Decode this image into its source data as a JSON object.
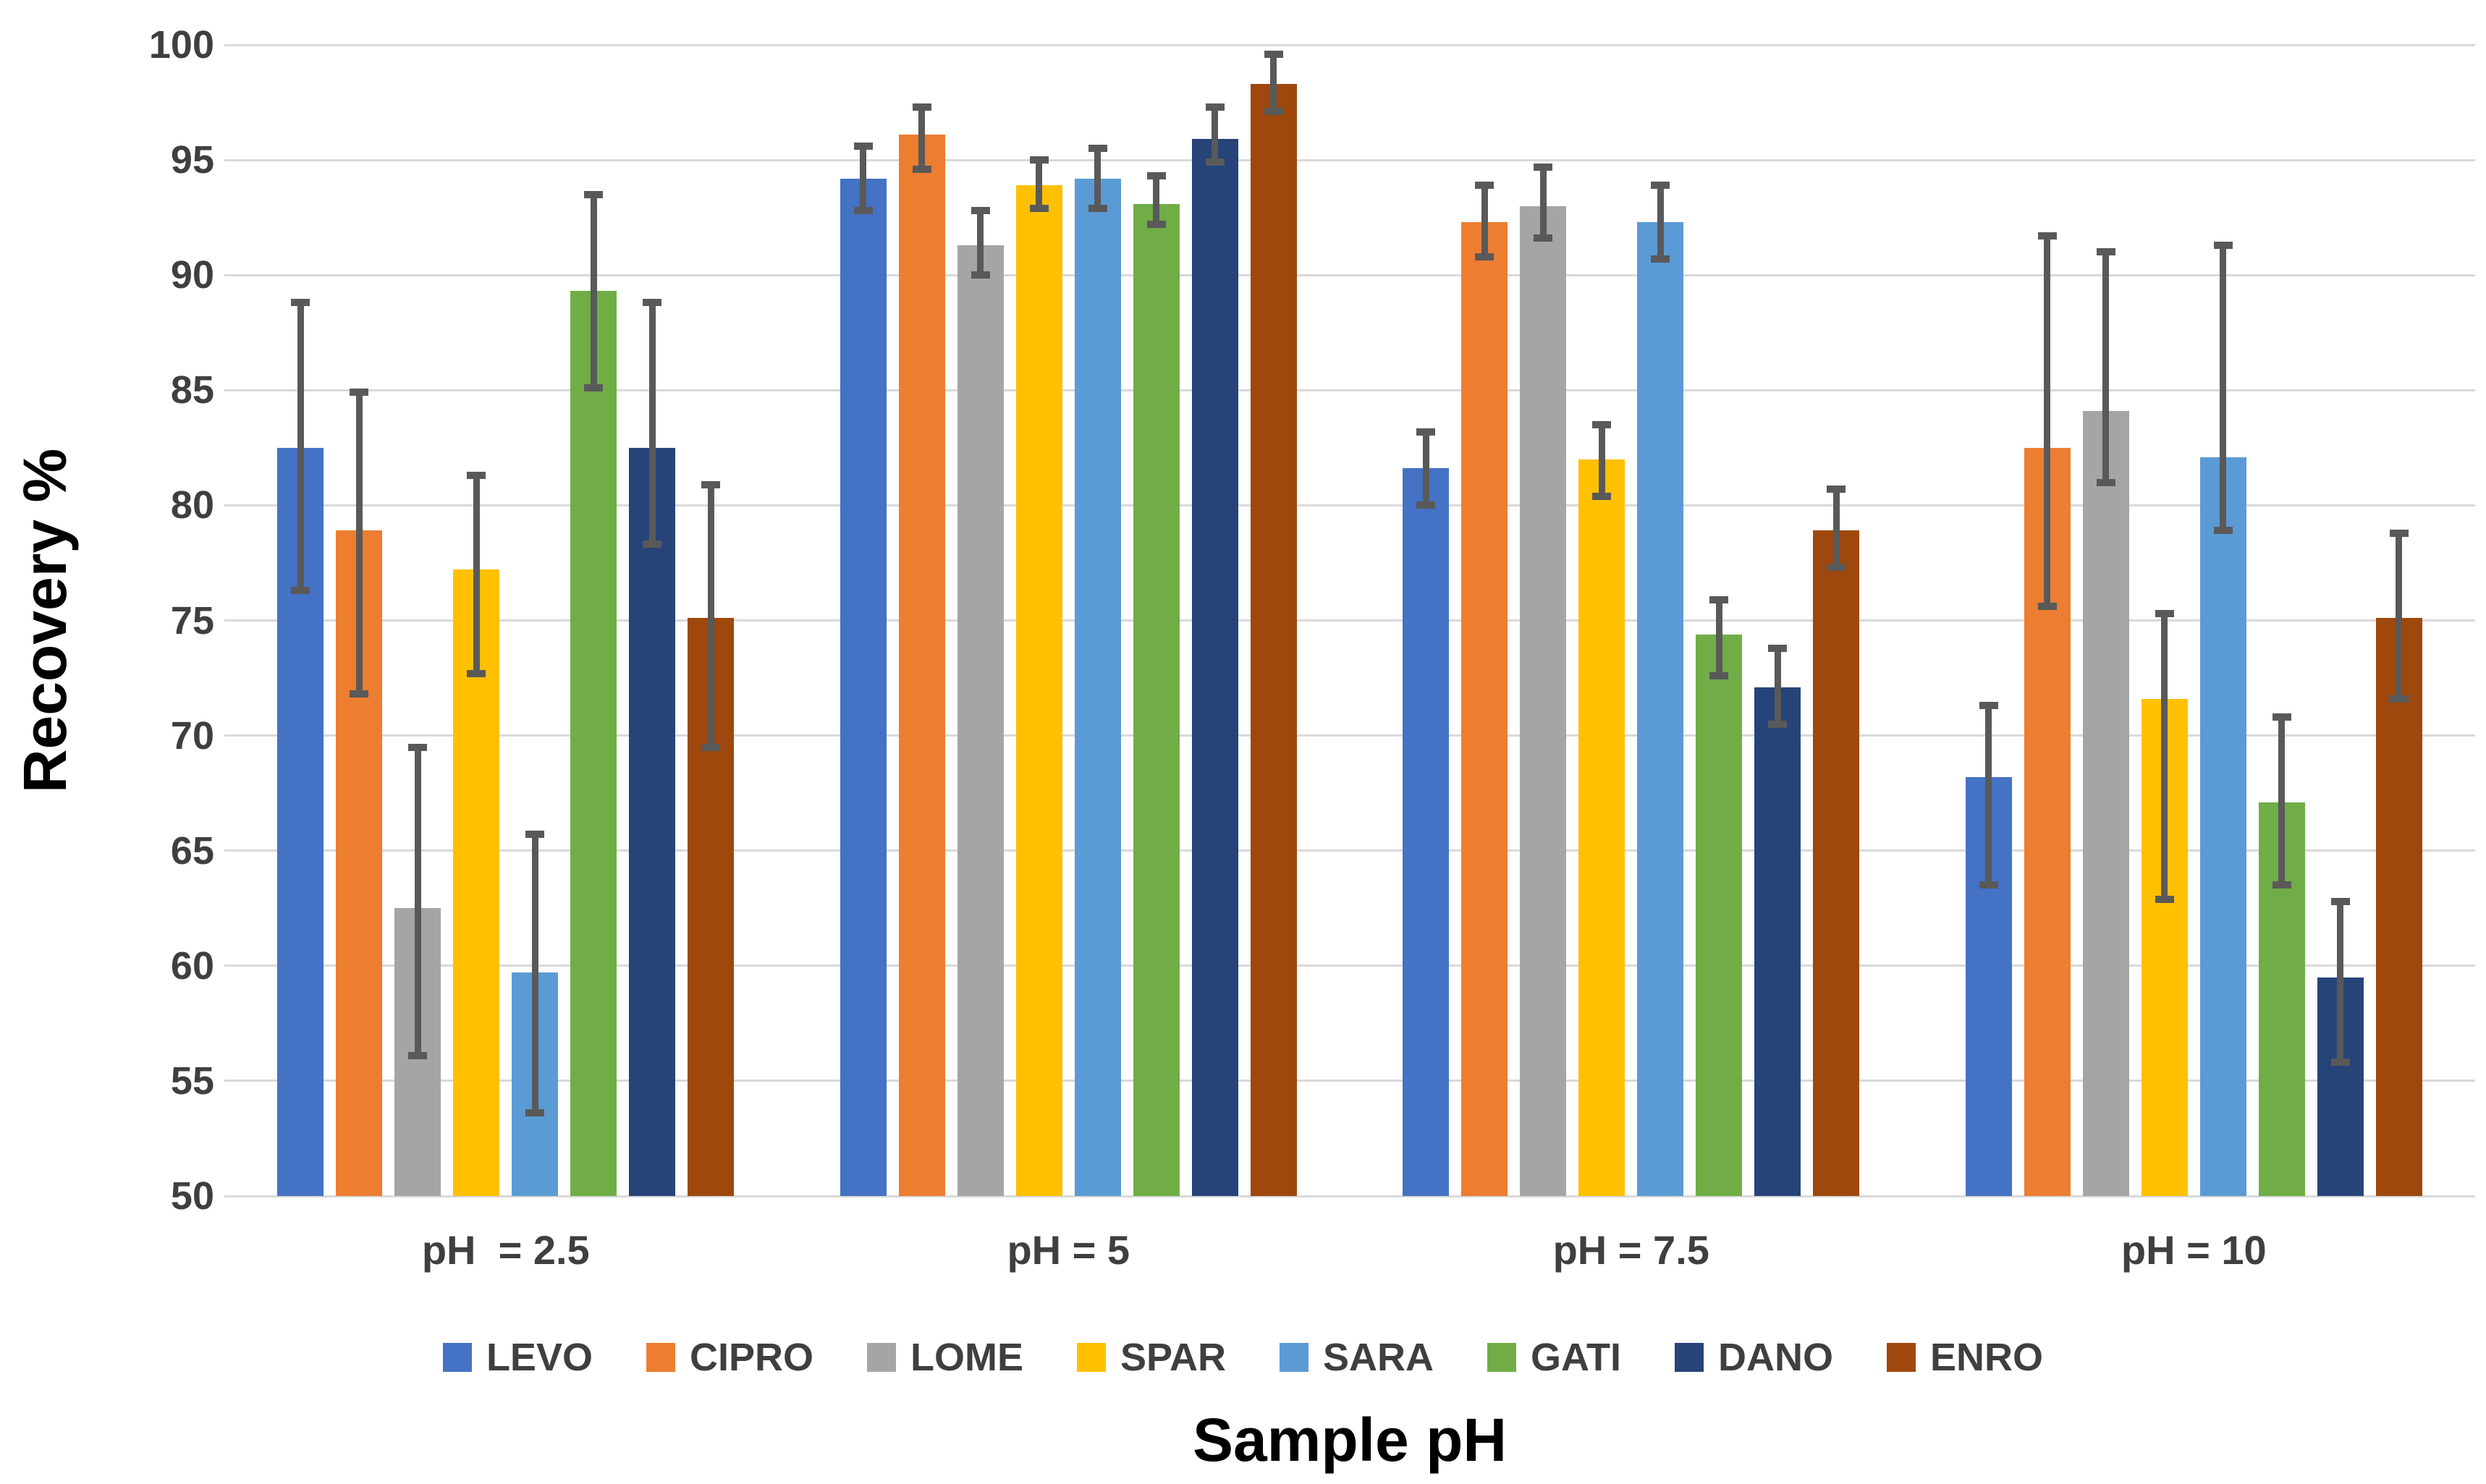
{
  "chart_data": {
    "type": "bar",
    "title": "",
    "xlabel": "Sample pH",
    "ylabel": "Recovery %",
    "ylim": [
      50,
      100
    ],
    "ytick_step": 5,
    "yticks": [
      "100",
      "95",
      "90",
      "85",
      "80",
      "75",
      "70",
      "65",
      "60",
      "55",
      "50"
    ],
    "grid": true,
    "legend_position": "bottom",
    "gridline_color": "#d9d9d9",
    "error_bar_color": "#595959",
    "categories": [
      "pH  = 2.5",
      "pH = 5",
      "pH = 7.5",
      "pH = 10"
    ],
    "series": [
      {
        "name": "LEVO",
        "color": "#4472C4",
        "values": [
          82.5,
          94.2,
          81.6,
          68.2
        ],
        "err_hi": [
          88.8,
          95.6,
          83.2,
          71.3
        ],
        "err_lo": [
          76.3,
          92.8,
          80.0,
          63.5
        ]
      },
      {
        "name": "CIPRO",
        "color": "#ED7D31",
        "values": [
          78.9,
          96.1,
          92.3,
          82.5
        ],
        "err_hi": [
          84.9,
          97.3,
          93.9,
          91.7
        ],
        "err_lo": [
          71.8,
          94.6,
          90.8,
          75.6
        ]
      },
      {
        "name": "LOME",
        "color": "#A5A5A5",
        "values": [
          62.5,
          91.3,
          93.0,
          84.1
        ],
        "err_hi": [
          69.5,
          92.8,
          94.7,
          91.0
        ],
        "err_lo": [
          56.1,
          90.0,
          91.6,
          81.0
        ]
      },
      {
        "name": "SPAR",
        "color": "#FFC000",
        "values": [
          77.2,
          93.9,
          82.0,
          71.6
        ],
        "err_hi": [
          81.3,
          95.0,
          83.5,
          75.3
        ],
        "err_lo": [
          72.7,
          92.9,
          80.4,
          62.9
        ]
      },
      {
        "name": "SARA",
        "color": "#5B9BD5",
        "values": [
          59.7,
          94.2,
          92.3,
          82.1
        ],
        "err_hi": [
          65.7,
          95.5,
          93.9,
          91.3
        ],
        "err_lo": [
          53.6,
          92.9,
          90.7,
          78.9
        ]
      },
      {
        "name": "GATI",
        "color": "#70AD47",
        "values": [
          89.3,
          93.1,
          74.4,
          67.1
        ],
        "err_hi": [
          93.5,
          94.3,
          75.9,
          70.8
        ],
        "err_lo": [
          85.1,
          92.2,
          72.6,
          63.5
        ]
      },
      {
        "name": "DANO",
        "color": "#264478",
        "values": [
          82.5,
          95.9,
          72.1,
          59.5
        ],
        "err_hi": [
          88.8,
          97.3,
          73.8,
          62.8
        ],
        "err_lo": [
          78.3,
          94.9,
          70.5,
          55.8
        ]
      },
      {
        "name": "ENRO",
        "color": "#9E480E",
        "values": [
          75.1,
          98.3,
          78.9,
          75.1
        ],
        "err_hi": [
          80.9,
          99.6,
          80.7,
          78.8
        ],
        "err_lo": [
          69.5,
          97.1,
          77.3,
          71.6
        ]
      }
    ]
  }
}
